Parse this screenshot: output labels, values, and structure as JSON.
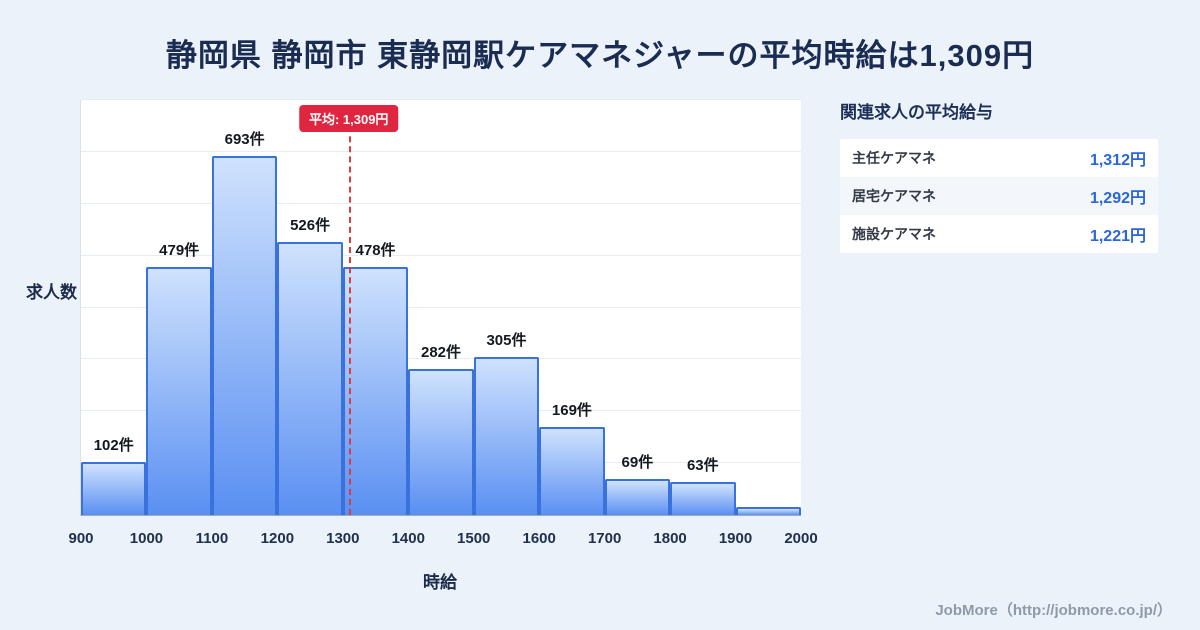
{
  "title": "静岡県 静岡市 東静岡駅ケアマネジャーの平均時給は1,309円",
  "chart_data": {
    "type": "bar",
    "title": "",
    "xlabel": "時給",
    "ylabel": "求人数",
    "x_range": [
      900,
      2000
    ],
    "x_ticks": [
      "900",
      "1000",
      "1100",
      "1200",
      "1300",
      "1400",
      "1500",
      "1600",
      "1700",
      "1800",
      "1900",
      "2000"
    ],
    "categories": [
      "900-1000",
      "1000-1100",
      "1100-1200",
      "1200-1300",
      "1300-1400",
      "1400-1500",
      "1500-1600",
      "1600-1700",
      "1700-1800",
      "1800-1900",
      "1900-2000"
    ],
    "values": [
      102,
      479,
      693,
      526,
      478,
      282,
      305,
      169,
      69,
      63,
      15
    ],
    "bar_labels": [
      "102件",
      "479件",
      "693件",
      "526件",
      "478件",
      "282件",
      "305件",
      "169件",
      "69件",
      "63件",
      ""
    ],
    "ylim": [
      0,
      800
    ],
    "grid_step": 100,
    "grid": true,
    "legend": false,
    "average": {
      "value": 1309,
      "label": "平均: 1,309円"
    },
    "colors": {
      "bar_top": "#cfe2fd",
      "bar_bottom": "#5a8ff2",
      "bar_border": "#3a72dd",
      "average_line": "#e03b3b",
      "badge_bg": "#e02540"
    }
  },
  "side_panel": {
    "title": "関連求人の平均給与",
    "rows": [
      {
        "label": "主任ケアマネ",
        "value": "1,312円"
      },
      {
        "label": "居宅ケアマネ",
        "value": "1,292円"
      },
      {
        "label": "施設ケアマネ",
        "value": "1,221円"
      }
    ],
    "value_color": "#2a66d9",
    "row_alt_bg": "#f3f7fc"
  },
  "footer": {
    "credit": "JobMore（http://jobmore.co.jp/）"
  }
}
